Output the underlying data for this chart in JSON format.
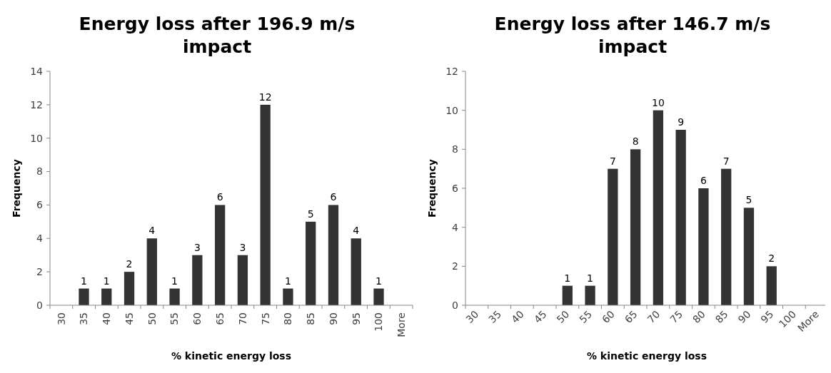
{
  "chart_data": [
    {
      "type": "bar",
      "title": "Energy loss after 196.9 m/s impact",
      "xlabel": "% kinetic energy loss",
      "ylabel": "Frequency",
      "categories": [
        "30",
        "35",
        "40",
        "45",
        "50",
        "55",
        "60",
        "65",
        "70",
        "75",
        "80",
        "85",
        "90",
        "95",
        "100",
        "More"
      ],
      "values": [
        0,
        1,
        1,
        2,
        4,
        1,
        3,
        6,
        3,
        12,
        1,
        5,
        6,
        4,
        1,
        0
      ],
      "value_labels": [
        null,
        "1",
        "1",
        "2",
        "4",
        "1",
        "3",
        "6",
        "3",
        "12",
        "1",
        "5",
        "6",
        "4",
        "1",
        null
      ],
      "color": "#333333",
      "ylim": [
        0,
        14
      ],
      "yticks": [
        0,
        2,
        4,
        6,
        8,
        10,
        12,
        14
      ],
      "grid": false
    },
    {
      "type": "bar",
      "title": "Energy loss after 146.7 m/s impact",
      "xlabel": "% kinetic energy loss",
      "ylabel": "Frequency",
      "categories": [
        "30",
        "35",
        "40",
        "45",
        "50",
        "55",
        "60",
        "65",
        "70",
        "75",
        "80",
        "85",
        "90",
        "95",
        "100",
        "More"
      ],
      "values": [
        0,
        0,
        0,
        0,
        1,
        1,
        7,
        8,
        10,
        9,
        6,
        7,
        5,
        2,
        0,
        0
      ],
      "value_labels": [
        null,
        null,
        null,
        null,
        "1",
        "1",
        "7",
        "8",
        "10",
        "9",
        "6",
        "7",
        "5",
        "2",
        null,
        null
      ],
      "color": "#333333",
      "ylim": [
        0,
        12
      ],
      "yticks": [
        0,
        2,
        4,
        6,
        8,
        10,
        12
      ],
      "grid": false
    }
  ]
}
